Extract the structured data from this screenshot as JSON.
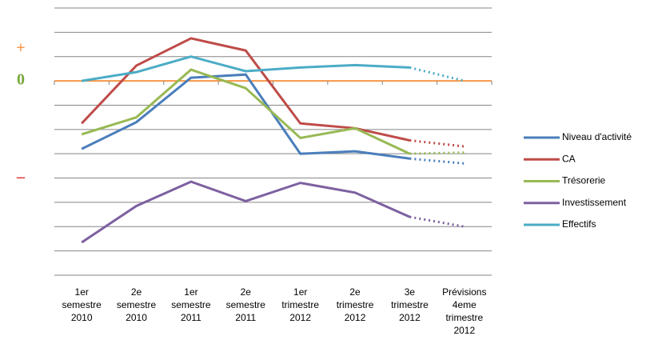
{
  "chart_data": {
    "type": "line",
    "categories": [
      [
        "1er",
        "semestre",
        "2010"
      ],
      [
        "2e",
        "semestre",
        "2010"
      ],
      [
        "1er",
        "semestre",
        "2011"
      ],
      [
        "2e",
        "semestre",
        "2011"
      ],
      [
        "1er",
        "trimestre",
        "2012"
      ],
      [
        "2e",
        "trimestre",
        "2012"
      ],
      [
        "3e",
        "trimestre",
        "2012"
      ],
      [
        "Prévisions",
        "4eme",
        "trimestre",
        "2012"
      ]
    ],
    "series": [
      {
        "name": "Niveau d'activité",
        "color": "#4a7ebb",
        "values": [
          -2.8,
          -1.7,
          0.13,
          0.26,
          -3.0,
          -2.9,
          -3.2,
          -3.4
        ]
      },
      {
        "name": "CA",
        "color": "#be4b48",
        "values": [
          -1.75,
          0.63,
          1.75,
          1.25,
          -1.75,
          -1.95,
          -2.45,
          -2.7
        ]
      },
      {
        "name": "Trésorerie",
        "color": "#98b954",
        "values": [
          -2.2,
          -1.5,
          0.46,
          -0.3,
          -2.35,
          -1.95,
          -3.0,
          -2.95
        ]
      },
      {
        "name": "Investissement",
        "color": "#7d60a0",
        "values": [
          -6.65,
          -5.15,
          -4.15,
          -4.95,
          -4.2,
          -4.6,
          -5.6,
          -6.0
        ]
      },
      {
        "name": "Effectifs",
        "color": "#4bacc6",
        "values": [
          0,
          0.36,
          1.0,
          0.4,
          0.55,
          0.65,
          0.55,
          0
        ]
      }
    ],
    "forecast_start": 6,
    "ylim": [
      -8,
      3
    ],
    "gridlines": [
      3,
      2,
      1,
      -1,
      -2,
      -3,
      -4,
      -5,
      -6,
      -7,
      -8
    ],
    "zero_line_color": "#f79646",
    "yticks": [
      {
        "value": 1.3,
        "label": "+"
      },
      {
        "value": 0,
        "label": "0"
      },
      {
        "value": -4,
        "label": "–"
      }
    ],
    "legend": "right"
  }
}
